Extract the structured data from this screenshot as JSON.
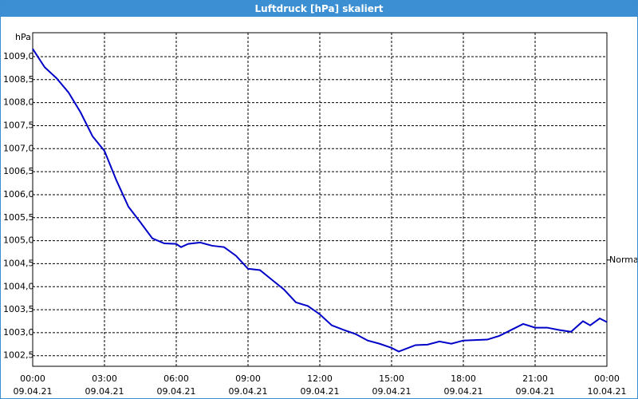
{
  "chart_data": {
    "type": "line",
    "title": "Luftdruck [hPa] skaliert",
    "y_unit": "hPa",
    "x": [
      0,
      0.5,
      1,
      1.5,
      2,
      2.5,
      3,
      3.5,
      4,
      4.5,
      5,
      5.5,
      6,
      6.2,
      6.5,
      7,
      7.5,
      8,
      8.5,
      9,
      9.5,
      10,
      10.5,
      11,
      11.5,
      12,
      12.5,
      13,
      13.5,
      14,
      14.5,
      15,
      15.3,
      15.7,
      16,
      16.5,
      17,
      17.5,
      18,
      19,
      19.5,
      20,
      20.5,
      21,
      21.5,
      22,
      22.5,
      23,
      23.3,
      23.7,
      24
    ],
    "series": [
      {
        "name": "Luftdruck",
        "color": "#0000c8",
        "values": [
          1009.17,
          1008.77,
          1008.53,
          1008.22,
          1007.79,
          1007.27,
          1006.95,
          1006.31,
          1005.74,
          1005.4,
          1005.05,
          1004.94,
          1004.93,
          1004.86,
          1004.93,
          1004.96,
          1004.89,
          1004.86,
          1004.67,
          1004.39,
          1004.36,
          1004.15,
          1003.94,
          1003.66,
          1003.58,
          1003.4,
          1003.16,
          1003.06,
          1002.97,
          1002.83,
          1002.76,
          1002.67,
          1002.59,
          1002.67,
          1002.73,
          1002.74,
          1002.81,
          1002.76,
          1002.83,
          1002.85,
          1002.93,
          1003.06,
          1003.19,
          1003.11,
          1003.11,
          1003.06,
          1003.02,
          1003.25,
          1003.16,
          1003.31,
          1003.23
        ]
      }
    ],
    "xlim": [
      0,
      24
    ],
    "xticks": [
      {
        "value": 0,
        "label": [
          "00:00",
          "09.04.21"
        ]
      },
      {
        "value": 3,
        "label": [
          "03:00",
          "09.04.21"
        ]
      },
      {
        "value": 6,
        "label": [
          "06:00",
          "09.04.21"
        ]
      },
      {
        "value": 9,
        "label": [
          "09:00",
          "09.04.21"
        ]
      },
      {
        "value": 12,
        "label": [
          "12:00",
          "09.04.21"
        ]
      },
      {
        "value": 15,
        "label": [
          "15:00",
          "09.04.21"
        ]
      },
      {
        "value": 18,
        "label": [
          "18:00",
          "09.04.21"
        ]
      },
      {
        "value": 21,
        "label": [
          "21:00",
          "09.04.21"
        ]
      },
      {
        "value": 24,
        "label": [
          "00:00",
          "10.04.21"
        ]
      }
    ],
    "ylim": [
      1002.27,
      1009.52
    ],
    "yticks": [
      {
        "value": 1002.5,
        "label": "1002,5"
      },
      {
        "value": 1003,
        "label": "1003,0"
      },
      {
        "value": 1003.5,
        "label": "1003,5"
      },
      {
        "value": 1004,
        "label": "1004,0"
      },
      {
        "value": 1004.5,
        "label": "1004,5"
      },
      {
        "value": 1005,
        "label": "1005,0"
      },
      {
        "value": 1005.5,
        "label": "1005,5"
      },
      {
        "value": 1006,
        "label": "1006,0"
      },
      {
        "value": 1006.5,
        "label": "1006,5"
      },
      {
        "value": 1007,
        "label": "1007,0"
      },
      {
        "value": 1007.5,
        "label": "1007,5"
      },
      {
        "value": 1008,
        "label": "1008,0"
      },
      {
        "value": 1008.5,
        "label": "1008,5"
      },
      {
        "value": 1009,
        "label": "1009,0"
      }
    ],
    "reference": {
      "label": "Normal",
      "value": 1004.58
    },
    "grid": true
  }
}
